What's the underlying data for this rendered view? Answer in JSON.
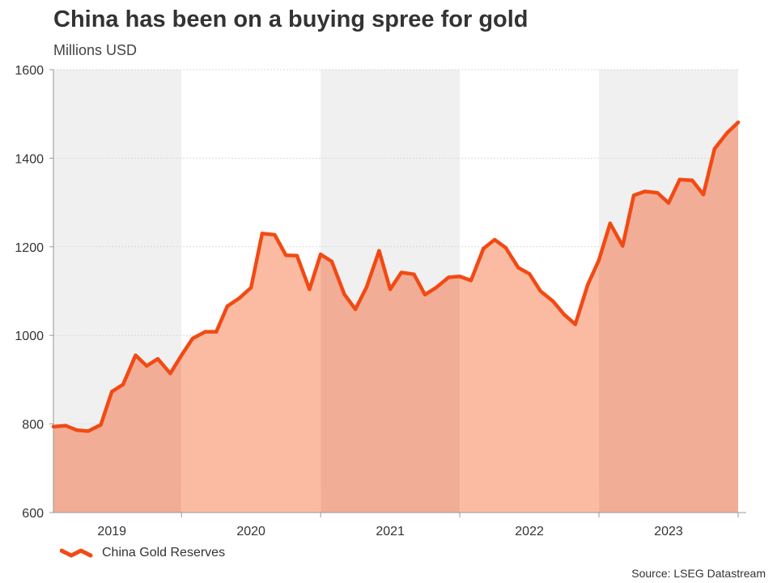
{
  "header": {
    "title": "China has been on a buying spree for gold",
    "subtitle": "Millions USD"
  },
  "legend": {
    "label": "China Gold Reserves"
  },
  "footer": {
    "source": "Source: LSEG Datastream"
  },
  "colors": {
    "line": "#f24a14",
    "area_light": "#fbbba3",
    "area_dark": "#f2ad96",
    "band": "#f0f0f0",
    "grid": "#d9d9d9",
    "axis": "#999999"
  },
  "chart_data": {
    "type": "area",
    "title": "China has been on a buying spree for gold",
    "ylabel": "Millions USD",
    "xlabel": "",
    "ylim": [
      600,
      1600
    ],
    "yticks": [
      600,
      800,
      1000,
      1200,
      1400,
      1600
    ],
    "xlim": [
      2018.58,
      2023.5
    ],
    "year_boundaries": [
      2019.5,
      2020.5,
      2021.5,
      2022.5,
      2023.5
    ],
    "year_labels": [
      {
        "label": "2019",
        "x": 2019.0
      },
      {
        "label": "2020",
        "x": 2020.0
      },
      {
        "label": "2021",
        "x": 2021.0
      },
      {
        "label": "2022",
        "x": 2022.0
      },
      {
        "label": "2023",
        "x": 2023.0
      }
    ],
    "shaded_years": [
      {
        "start": 2018.58,
        "end": 2019.5
      },
      {
        "start": 2020.5,
        "end": 2021.5
      },
      {
        "start": 2022.5,
        "end": 2023.5
      }
    ],
    "grid": true,
    "legend_position": "bottom-left",
    "series": [
      {
        "name": "China Gold Reserves",
        "x": [
          2018.58,
          2018.67,
          2018.75,
          2018.83,
          2018.92,
          2019.0,
          2019.08,
          2019.17,
          2019.25,
          2019.33,
          2019.42,
          2019.5,
          2019.58,
          2019.67,
          2019.75,
          2019.83,
          2019.92,
          2020.0,
          2020.08,
          2020.17,
          2020.25,
          2020.33,
          2020.42,
          2020.5,
          2020.58,
          2020.67,
          2020.75,
          2020.83,
          2020.92,
          2021.0,
          2021.08,
          2021.17,
          2021.25,
          2021.33,
          2021.42,
          2021.5,
          2021.58,
          2021.67,
          2021.75,
          2021.83,
          2021.92,
          2022.0,
          2022.08,
          2022.17,
          2022.25,
          2022.33,
          2022.42,
          2022.5,
          2022.58,
          2022.67,
          2022.75,
          2022.83,
          2022.92,
          2023.0,
          2023.08,
          2023.17,
          2023.25,
          2023.33,
          2023.42,
          2023.5
        ],
        "values": [
          794,
          796,
          786,
          784,
          798,
          873,
          889,
          955,
          931,
          947,
          914,
          955,
          993,
          1008,
          1008,
          1066,
          1085,
          1108,
          1230,
          1227,
          1181,
          1180,
          1104,
          1183,
          1167,
          1093,
          1059,
          1109,
          1191,
          1104,
          1142,
          1138,
          1092,
          1108,
          1131,
          1133,
          1124,
          1196,
          1216,
          1198,
          1153,
          1139,
          1100,
          1077,
          1047,
          1025,
          1115,
          1170,
          1253,
          1202,
          1316,
          1325,
          1322,
          1299,
          1352,
          1350,
          1318,
          1421,
          1457,
          1481
        ]
      }
    ]
  }
}
